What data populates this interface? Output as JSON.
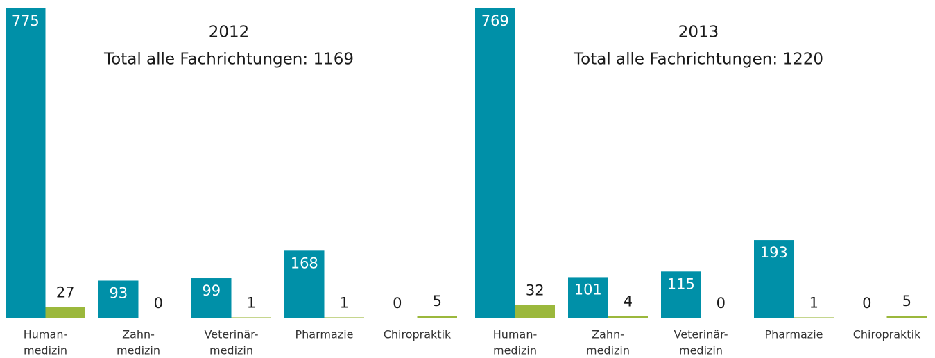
{
  "chart_data": [
    {
      "type": "bar",
      "title": "2012",
      "subtitle": "Total alle Fachrichtungen: 1169",
      "categories": [
        [
          "Human-",
          "medizin"
        ],
        [
          "Zahn-",
          "medizin"
        ],
        [
          "Veterinär-",
          "medizin"
        ],
        [
          "Pharmazie"
        ],
        [
          "Chiropraktik"
        ]
      ],
      "series": [
        {
          "color": "#0090a8",
          "values": [
            775,
            93,
            99,
            168,
            0
          ]
        },
        {
          "color": "#9bb83c",
          "values": [
            27,
            0,
            1,
            1,
            5
          ]
        }
      ],
      "ylim": [
        0,
        775
      ]
    },
    {
      "type": "bar",
      "title": "2013",
      "subtitle": "Total alle Fachrichtungen: 1220",
      "categories": [
        [
          "Human-",
          "medizin"
        ],
        [
          "Zahn-",
          "medizin"
        ],
        [
          "Veterinär-",
          "medizin"
        ],
        [
          "Pharmazie"
        ],
        [
          "Chiropraktik"
        ]
      ],
      "series": [
        {
          "color": "#0090a8",
          "values": [
            769,
            101,
            115,
            193,
            0
          ]
        },
        {
          "color": "#9bb83c",
          "values": [
            32,
            4,
            0,
            1,
            5
          ]
        }
      ],
      "ylim": [
        0,
        769
      ]
    }
  ]
}
